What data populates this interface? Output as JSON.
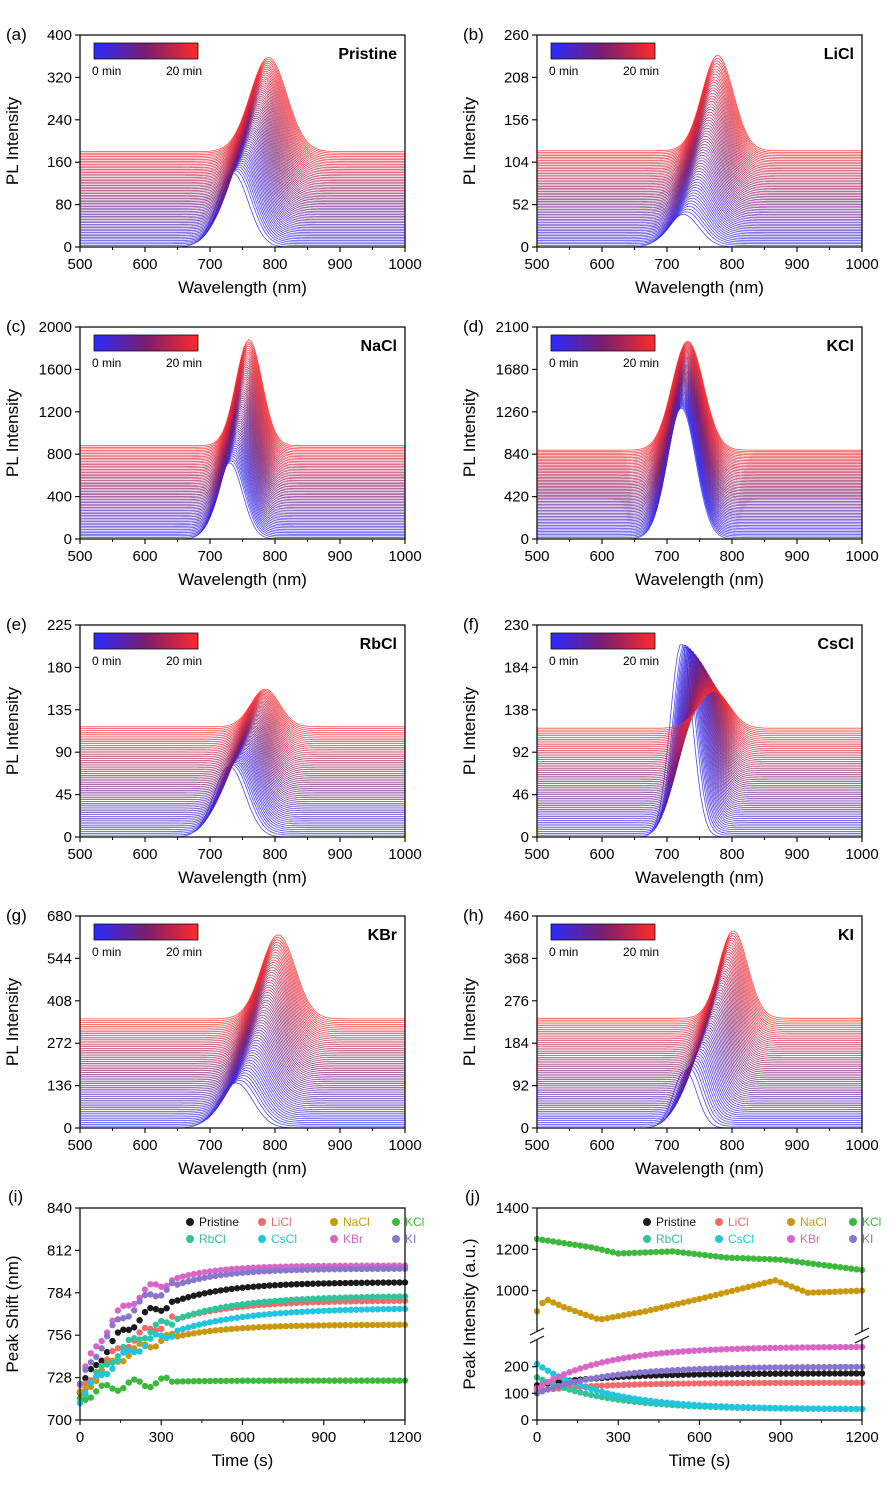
{
  "figure": {
    "colorbar": {
      "start_label": "0 min",
      "end_label": "20 min",
      "start_color": "#2a2aff",
      "mid_color": "#7a1e6e",
      "end_color": "#ff2a2a"
    }
  },
  "chart_data": [
    {
      "id": "a",
      "type": "line",
      "panel_label": "(a)",
      "title": "Pristine",
      "xlabel": "Wavelength (nm)",
      "ylabel": "PL Intensity",
      "xlim": [
        500,
        1000
      ],
      "ylim": [
        0,
        400
      ],
      "xticks": [
        500,
        600,
        700,
        800,
        900,
        1000
      ],
      "yticks": [
        0,
        80,
        160,
        240,
        320,
        400
      ],
      "series_count": 60,
      "baseline_final": 180,
      "first_curve": {
        "peak_nm": 735,
        "amplitude": 140,
        "width": 24
      },
      "last_curve": {
        "peak_nm": 790,
        "amplitude": 178,
        "width": 28
      }
    },
    {
      "id": "b",
      "type": "line",
      "panel_label": "(b)",
      "title": "LiCl",
      "xlabel": "Wavelength (nm)",
      "ylabel": "PL Intensity",
      "xlim": [
        500,
        1000
      ],
      "ylim": [
        0,
        260
      ],
      "xticks": [
        500,
        600,
        700,
        800,
        900,
        1000
      ],
      "yticks": [
        0,
        52,
        104,
        156,
        208,
        260
      ],
      "series_count": 60,
      "baseline_final": 118,
      "first_curve": {
        "peak_nm": 725,
        "amplitude": 40,
        "width": 24
      },
      "last_curve": {
        "peak_nm": 778,
        "amplitude": 117,
        "width": 24
      }
    },
    {
      "id": "c",
      "type": "line",
      "panel_label": "(c)",
      "title": "NaCl",
      "xlabel": "Wavelength (nm)",
      "ylabel": "PL Intensity",
      "xlim": [
        500,
        1000
      ],
      "ylim": [
        0,
        2000
      ],
      "xticks": [
        500,
        600,
        700,
        800,
        900,
        1000
      ],
      "yticks": [
        0,
        400,
        800,
        1200,
        1600,
        2000
      ],
      "series_count": 60,
      "baseline_final": 880,
      "first_curve": {
        "peak_nm": 730,
        "amplitude": 720,
        "width": 20
      },
      "last_curve": {
        "peak_nm": 760,
        "amplitude": 1000,
        "width": 20
      }
    },
    {
      "id": "d",
      "type": "line",
      "panel_label": "(d)",
      "title": "KCl",
      "xlabel": "Wavelength (nm)",
      "ylabel": "PL Intensity",
      "xlim": [
        500,
        1000
      ],
      "ylim": [
        0,
        2100
      ],
      "xticks": [
        500,
        600,
        700,
        800,
        900,
        1000
      ],
      "yticks": [
        0,
        420,
        840,
        1260,
        1680,
        2100
      ],
      "series_count": 60,
      "baseline_final": 880,
      "first_curve": {
        "peak_nm": 722,
        "amplitude": 1300,
        "width": 22
      },
      "last_curve": {
        "peak_nm": 732,
        "amplitude": 1080,
        "width": 24
      }
    },
    {
      "id": "e",
      "type": "line",
      "panel_label": "(e)",
      "title": "RbCl",
      "xlabel": "Wavelength (nm)",
      "ylabel": "PL Intensity",
      "xlim": [
        500,
        1000
      ],
      "ylim": [
        0,
        225
      ],
      "xticks": [
        500,
        600,
        700,
        800,
        900,
        1000
      ],
      "yticks": [
        0,
        45,
        90,
        135,
        180,
        225
      ],
      "series_count": 60,
      "baseline_final": 117,
      "first_curve": {
        "peak_nm": 730,
        "amplitude": 75,
        "width": 24
      },
      "last_curve": {
        "peak_nm": 785,
        "amplitude": 40,
        "width": 22
      }
    },
    {
      "id": "f",
      "type": "line",
      "panel_label": "(f)",
      "title": "CsCl",
      "xlabel": "Wavelength (nm)",
      "ylabel": "PL Intensity",
      "xlim": [
        500,
        1000
      ],
      "ylim": [
        0,
        230
      ],
      "xticks": [
        500,
        600,
        700,
        800,
        900,
        1000
      ],
      "yticks": [
        0,
        46,
        92,
        138,
        184,
        230
      ],
      "series_count": 60,
      "baseline_final": 118,
      "first_curve": {
        "peak_nm": 722,
        "amplitude": 210,
        "width": 17
      },
      "last_curve": {
        "peak_nm": 772,
        "amplitude": 40,
        "width": 24
      }
    },
    {
      "id": "g",
      "type": "line",
      "panel_label": "(g)",
      "title": "KBr",
      "xlabel": "Wavelength (nm)",
      "ylabel": "PL Intensity",
      "xlim": [
        500,
        1000
      ],
      "ylim": [
        0,
        680
      ],
      "xticks": [
        500,
        600,
        700,
        800,
        900,
        1000
      ],
      "yticks": [
        0,
        136,
        272,
        408,
        544,
        680
      ],
      "series_count": 60,
      "baseline_final": 350,
      "first_curve": {
        "peak_nm": 740,
        "amplitude": 145,
        "width": 26
      },
      "last_curve": {
        "peak_nm": 805,
        "amplitude": 270,
        "width": 26
      }
    },
    {
      "id": "h",
      "type": "line",
      "panel_label": "(h)",
      "title": "KI",
      "xlabel": "Wavelength (nm)",
      "ylabel": "PL Intensity",
      "xlim": [
        500,
        1000
      ],
      "ylim": [
        0,
        460
      ],
      "xticks": [
        500,
        600,
        700,
        800,
        900,
        1000
      ],
      "yticks": [
        0,
        92,
        184,
        276,
        368,
        460
      ],
      "series_count": 60,
      "baseline_final": 238,
      "first_curve": {
        "peak_nm": 728,
        "amplitude": 125,
        "width": 18
      },
      "last_curve": {
        "peak_nm": 802,
        "amplitude": 190,
        "width": 22
      }
    },
    {
      "id": "i",
      "type": "scatter",
      "panel_label": "(i)",
      "xlabel": "Time (s)",
      "ylabel": "Peak Shift (nm)",
      "xlim": [
        0,
        1200
      ],
      "ylim": [
        700,
        840
      ],
      "xticks": [
        0,
        300,
        600,
        900,
        1200
      ],
      "yticks": [
        700,
        728,
        756,
        784,
        812,
        840
      ],
      "series": [
        {
          "name": "Pristine",
          "color": "#1a1a1a",
          "start": 718,
          "end": 791,
          "tau": 200
        },
        {
          "name": "LiCl",
          "color": "#f06a6a",
          "start": 716,
          "end": 779,
          "tau": 220
        },
        {
          "name": "NaCl",
          "color": "#c9980c",
          "start": 716,
          "end": 763,
          "tau": 200
        },
        {
          "name": "KCl",
          "color": "#3cb83c",
          "start": 714,
          "end": 726,
          "tau": 120
        },
        {
          "name": "RbCl",
          "color": "#33c29a",
          "start": 714,
          "end": 782,
          "tau": 240
        },
        {
          "name": "CsCl",
          "color": "#22c4e0",
          "start": 714,
          "end": 774,
          "tau": 260
        },
        {
          "name": "KBr",
          "color": "#d966c6",
          "start": 724,
          "end": 802,
          "tau": 160
        },
        {
          "name": "KI",
          "color": "#8877cc",
          "start": 722,
          "end": 800,
          "tau": 180
        }
      ]
    },
    {
      "id": "j",
      "type": "scatter",
      "panel_label": "(j)",
      "xlabel": "Time (s)",
      "ylabel": "Peak Intensity (a.u.)",
      "xlim": [
        0,
        1200
      ],
      "axis_break": true,
      "lower_ylim": [
        0,
        300
      ],
      "upper_ylim": [
        800,
        1400
      ],
      "xticks": [
        0,
        300,
        600,
        900,
        1200
      ],
      "yticks_lower": [
        0,
        100,
        200
      ],
      "yticks_upper": [
        1000,
        1200,
        1400
      ],
      "series": [
        {
          "name": "Pristine",
          "color": "#1a1a1a",
          "segment": "lower",
          "start": 130,
          "end": 175
        },
        {
          "name": "LiCl",
          "color": "#f06a6a",
          "segment": "lower",
          "start": 110,
          "end": 140
        },
        {
          "name": "NaCl",
          "color": "#c9980c",
          "segment": "upper",
          "points": [
            [
              0,
              900
            ],
            [
              30,
              960
            ],
            [
              100,
              920
            ],
            [
              230,
              860
            ],
            [
              400,
              900
            ],
            [
              600,
              960
            ],
            [
              880,
              1050
            ],
            [
              1000,
              990
            ],
            [
              1200,
              1000
            ]
          ]
        },
        {
          "name": "KCl",
          "color": "#3cb83c",
          "segment": "upper",
          "points": [
            [
              0,
              1250
            ],
            [
              200,
              1210
            ],
            [
              300,
              1180
            ],
            [
              500,
              1190
            ],
            [
              700,
              1160
            ],
            [
              900,
              1150
            ],
            [
              1200,
              1100
            ]
          ]
        },
        {
          "name": "RbCl",
          "color": "#33c29a",
          "segment": "lower",
          "start": 160,
          "end": 40
        },
        {
          "name": "CsCl",
          "color": "#22c4e0",
          "segment": "lower",
          "start": 210,
          "end": 40
        },
        {
          "name": "KBr",
          "color": "#d966c6",
          "segment": "lower",
          "start": 120,
          "end": 275
        },
        {
          "name": "KI",
          "color": "#8877cc",
          "segment": "lower",
          "start": 100,
          "end": 200
        }
      ]
    }
  ]
}
